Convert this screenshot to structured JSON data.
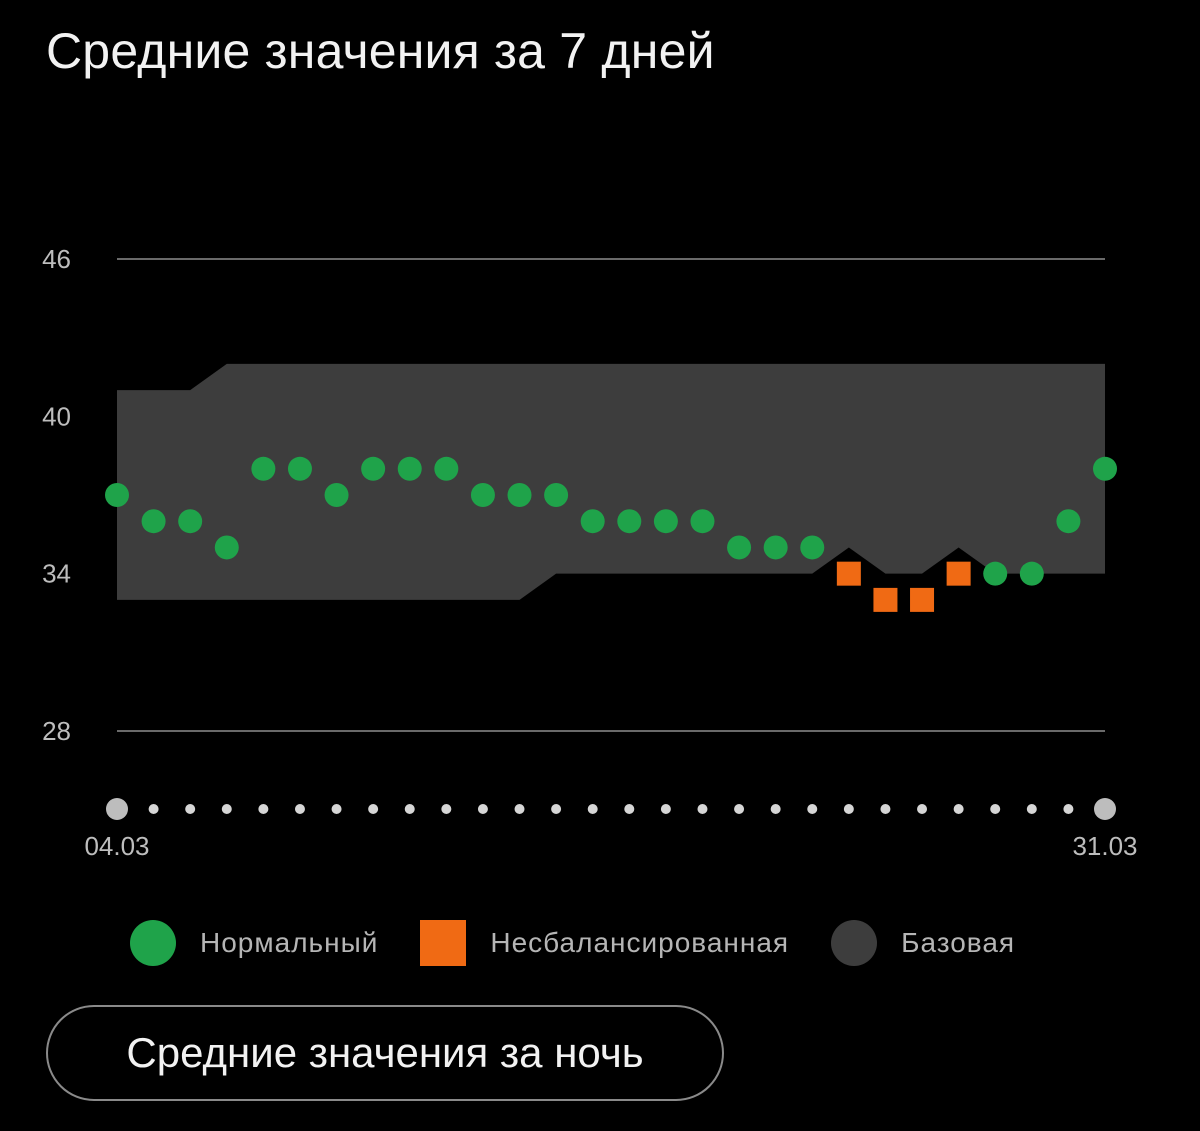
{
  "title": "Средние значения за 7 дней",
  "legend": {
    "normal": "Нормальный",
    "unbalanced": "Несбалансированная",
    "baseline": "Базовая"
  },
  "night_button_label": "Средние значения за ночь",
  "colors": {
    "normal": "#1fa34a",
    "unbalanced": "#f06a14",
    "baseline_band": "#3d3d3d",
    "grid": "#6a6a6a",
    "tick_text": "#bdbdbd",
    "axis_dot": "#d6d6d6",
    "axis_endpoint_dot": "#bdbdbd"
  },
  "chart_data": {
    "type": "scatter",
    "title": "Средние значения за 7 дней",
    "x_start_label": "04.03",
    "x_end_label": "31.03",
    "ylim": [
      28,
      46
    ],
    "yticks": [
      46,
      40,
      34,
      28
    ],
    "grid_lines_at": [
      46,
      28
    ],
    "points": [
      {
        "day": 1,
        "value": 37,
        "status": "normal"
      },
      {
        "day": 2,
        "value": 36,
        "status": "normal"
      },
      {
        "day": 3,
        "value": 36,
        "status": "normal"
      },
      {
        "day": 4,
        "value": 35,
        "status": "normal"
      },
      {
        "day": 5,
        "value": 38,
        "status": "normal"
      },
      {
        "day": 6,
        "value": 38,
        "status": "normal"
      },
      {
        "day": 7,
        "value": 37,
        "status": "normal"
      },
      {
        "day": 8,
        "value": 38,
        "status": "normal"
      },
      {
        "day": 9,
        "value": 38,
        "status": "normal"
      },
      {
        "day": 10,
        "value": 38,
        "status": "normal"
      },
      {
        "day": 11,
        "value": 37,
        "status": "normal"
      },
      {
        "day": 12,
        "value": 37,
        "status": "normal"
      },
      {
        "day": 13,
        "value": 37,
        "status": "normal"
      },
      {
        "day": 14,
        "value": 36,
        "status": "normal"
      },
      {
        "day": 15,
        "value": 36,
        "status": "normal"
      },
      {
        "day": 16,
        "value": 36,
        "status": "normal"
      },
      {
        "day": 17,
        "value": 36,
        "status": "normal"
      },
      {
        "day": 18,
        "value": 35,
        "status": "normal"
      },
      {
        "day": 19,
        "value": 35,
        "status": "normal"
      },
      {
        "day": 20,
        "value": 35,
        "status": "normal"
      },
      {
        "day": 21,
        "value": 34,
        "status": "unbalanced"
      },
      {
        "day": 22,
        "value": 33,
        "status": "unbalanced"
      },
      {
        "day": 23,
        "value": 33,
        "status": "unbalanced"
      },
      {
        "day": 24,
        "value": 34,
        "status": "unbalanced"
      },
      {
        "day": 25,
        "value": 34,
        "status": "normal"
      },
      {
        "day": 26,
        "value": 34,
        "status": "normal"
      },
      {
        "day": 27,
        "value": 36,
        "status": "normal"
      },
      {
        "day": 28,
        "value": 38,
        "status": "normal"
      }
    ],
    "baseline_band": {
      "upper": [
        {
          "day": 1,
          "value": 41
        },
        {
          "day": 3,
          "value": 41
        },
        {
          "day": 4,
          "value": 42
        },
        {
          "day": 28,
          "value": 42
        }
      ],
      "lower": [
        {
          "day": 1,
          "value": 33
        },
        {
          "day": 12,
          "value": 33
        },
        {
          "day": 13,
          "value": 34
        },
        {
          "day": 20,
          "value": 34
        },
        {
          "day": 21,
          "value": 35
        },
        {
          "day": 22,
          "value": 34
        },
        {
          "day": 23,
          "value": 34
        },
        {
          "day": 24,
          "value": 35
        },
        {
          "day": 25,
          "value": 34
        },
        {
          "day": 28,
          "value": 34
        }
      ]
    }
  }
}
